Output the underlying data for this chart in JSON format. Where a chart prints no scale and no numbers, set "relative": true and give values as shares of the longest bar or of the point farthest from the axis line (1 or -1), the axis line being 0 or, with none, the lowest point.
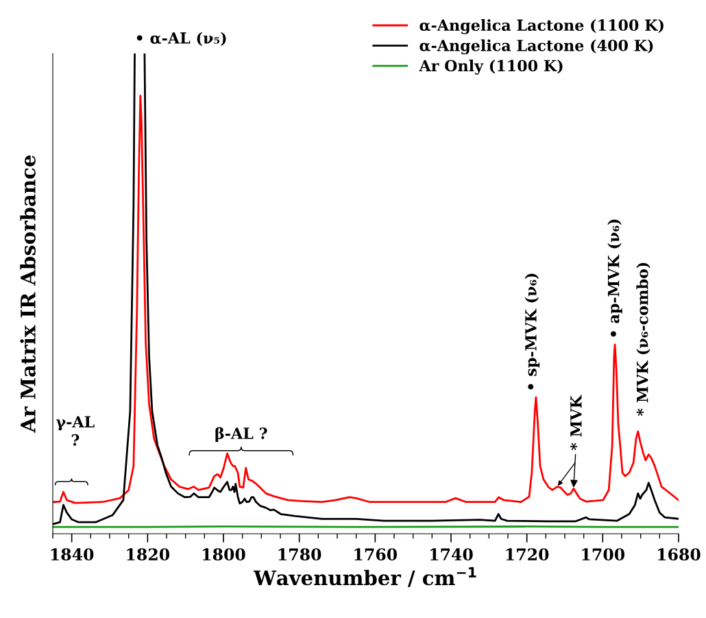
{
  "chart_data": {
    "type": "line",
    "relative": true,
    "xlabel": "Wavenumber / cm$^{−1}$",
    "ylabel": "Ar Matrix IR Absorbance",
    "xlim": [
      1845,
      1680
    ],
    "xticks": [
      {
        "value": 1845,
        "label": null
      },
      1840,
      {
        "value": 1835,
        "label": null
      },
      {
        "value": 1830,
        "label": null
      },
      {
        "value": 1825,
        "label": null
      },
      1820,
      {
        "value": 1815,
        "label": null
      },
      {
        "value": 1810,
        "label": null
      },
      {
        "value": 1805,
        "label": null
      },
      1800,
      {
        "value": 1795,
        "label": null
      },
      {
        "value": 1790,
        "label": null
      },
      {
        "value": 1785,
        "label": null
      },
      1780,
      {
        "value": 1775,
        "label": null
      },
      {
        "value": 1770,
        "label": null
      },
      {
        "value": 1765,
        "label": null
      },
      1760,
      {
        "value": 1755,
        "label": null
      },
      {
        "value": 1750,
        "label": null
      },
      {
        "value": 1745,
        "label": null
      },
      1740,
      {
        "value": 1735,
        "label": null
      },
      {
        "value": 1730,
        "label": null
      },
      {
        "value": 1725,
        "label": null
      },
      1720,
      {
        "value": 1715,
        "label": null
      },
      {
        "value": 1710,
        "label": null
      },
      {
        "value": 1705,
        "label": null
      },
      1700,
      {
        "value": 1695,
        "label": null
      },
      {
        "value": 1690,
        "label": null
      },
      {
        "value": 1685,
        "label": null
      },
      1680
    ],
    "legend": "top right",
    "grid": false,
    "marker": "none",
    "line_style": "solid",
    "series": [
      {
        "name": "α-Angelica Lactone (1100 K)",
        "color": "#ff0000",
        "x": [
          1845.0,
          1843.1,
          1842.2,
          1841.3,
          1839.1,
          1831.9,
          1827.3,
          1825.0,
          1823.7,
          1822.8,
          1822.3,
          1821.9,
          1821.6,
          1821.0,
          1820.5,
          1819.6,
          1818.3,
          1817.0,
          1815.6,
          1813.8,
          1811.6,
          1809.3,
          1807.8,
          1806.6,
          1803.8,
          1802.4,
          1801.5,
          1800.8,
          1799.9,
          1799.0,
          1798.1,
          1797.5,
          1797.0,
          1796.2,
          1795.7,
          1794.8,
          1794.1,
          1793.4,
          1792.4,
          1791.4,
          1790.3,
          1788.8,
          1786.7,
          1783.0,
          1779.4,
          1774.0,
          1770.4,
          1766.8,
          1765.0,
          1761.4,
          1750.5,
          1741.5,
          1738.8,
          1736.0,
          1732.4,
          1728.4,
          1727.4,
          1726.1,
          1721.6,
          1719.4,
          1718.7,
          1717.9,
          1717.6,
          1717.1,
          1716.5,
          1715.6,
          1714.3,
          1713.3,
          1712.0,
          1711.1,
          1710.2,
          1709.3,
          1708.4,
          1707.7,
          1706.9,
          1706.0,
          1704.4,
          1699.9,
          1698.4,
          1697.5,
          1697.0,
          1696.8,
          1696.4,
          1695.9,
          1695.4,
          1694.8,
          1694.1,
          1693.0,
          1691.9,
          1691.2,
          1690.7,
          1690.1,
          1689.4,
          1688.7,
          1687.9,
          1687.2,
          1686.3,
          1685.4,
          1684.5,
          1682.7,
          1680.0
        ],
        "values": [
          0.066,
          0.067,
          0.087,
          0.07,
          0.064,
          0.066,
          0.074,
          0.091,
          0.141,
          0.469,
          0.755,
          0.912,
          0.854,
          0.612,
          0.398,
          0.27,
          0.198,
          0.17,
          0.141,
          0.113,
          0.098,
          0.093,
          0.098,
          0.091,
          0.096,
          0.12,
          0.124,
          0.117,
          0.138,
          0.167,
          0.148,
          0.141,
          0.141,
          0.127,
          0.098,
          0.096,
          0.137,
          0.113,
          0.11,
          0.104,
          0.096,
          0.084,
          0.078,
          0.07,
          0.068,
          0.066,
          0.07,
          0.076,
          0.074,
          0.066,
          0.066,
          0.066,
          0.074,
          0.066,
          0.066,
          0.066,
          0.076,
          0.07,
          0.066,
          0.077,
          0.127,
          0.255,
          0.284,
          0.227,
          0.141,
          0.113,
          0.097,
          0.091,
          0.098,
          0.096,
          0.088,
          0.081,
          0.084,
          0.094,
          0.084,
          0.073,
          0.067,
          0.07,
          0.091,
          0.184,
          0.369,
          0.394,
          0.341,
          0.227,
          0.184,
          0.127,
          0.12,
          0.127,
          0.148,
          0.198,
          0.213,
          0.191,
          0.17,
          0.153,
          0.165,
          0.158,
          0.141,
          0.12,
          0.098,
          0.087,
          0.07
        ]
      },
      {
        "name": "α-Angelica Lactone (400 K)",
        "color": "#000000",
        "x": [
          1845.0,
          1843.1,
          1842.2,
          1841.3,
          1840.0,
          1838.2,
          1833.7,
          1829.2,
          1826.4,
          1824.6,
          1823.7,
          1823.4,
          1822.2,
          1820.8,
          1820.3,
          1819.6,
          1818.8,
          1817.4,
          1816.3,
          1815.2,
          1813.8,
          1812.0,
          1810.2,
          1808.7,
          1807.8,
          1806.6,
          1803.8,
          1802.9,
          1802.4,
          1801.5,
          1800.8,
          1799.9,
          1799.0,
          1798.4,
          1797.9,
          1797.5,
          1797.1,
          1796.8,
          1796.2,
          1795.7,
          1795.0,
          1794.4,
          1793.9,
          1793.2,
          1792.6,
          1792.1,
          1791.4,
          1790.3,
          1788.8,
          1787.6,
          1786.7,
          1784.9,
          1781.2,
          1774.0,
          1765.0,
          1757.7,
          1745.1,
          1732.4,
          1728.4,
          1727.5,
          1726.8,
          1725.2,
          1714.3,
          1707.1,
          1704.4,
          1703.5,
          1696.2,
          1693.0,
          1691.5,
          1690.7,
          1690.1,
          1689.6,
          1688.5,
          1687.9,
          1687.2,
          1686.3,
          1685.0,
          1683.6,
          1680.0
        ],
        "values": [
          0.02,
          0.024,
          0.06,
          0.044,
          0.03,
          0.024,
          0.024,
          0.039,
          0.07,
          0.255,
          0.683,
          1.0,
          null,
          1.0,
          0.612,
          0.369,
          0.255,
          0.184,
          0.158,
          0.127,
          0.098,
          0.084,
          0.076,
          0.077,
          0.084,
          0.076,
          0.076,
          0.088,
          0.096,
          0.09,
          0.087,
          0.098,
          0.108,
          0.091,
          0.091,
          0.098,
          0.087,
          0.104,
          0.077,
          0.063,
          0.066,
          0.073,
          0.066,
          0.067,
          0.076,
          0.076,
          0.066,
          0.058,
          0.054,
          0.049,
          0.05,
          0.041,
          0.037,
          0.031,
          0.031,
          0.027,
          0.027,
          0.029,
          0.027,
          0.041,
          0.031,
          0.027,
          0.026,
          0.026,
          0.034,
          0.03,
          0.027,
          0.041,
          0.06,
          0.084,
          0.073,
          0.081,
          0.091,
          0.106,
          0.091,
          0.07,
          0.044,
          0.034,
          0.031
        ]
      },
      {
        "name": "Ar Only (1100 K)",
        "color": "#1a9a1a",
        "x": [
          1845.0,
          1820.0,
          1800.0,
          1760.0,
          1720.0,
          1700.0,
          1680.0
        ],
        "values": [
          0.014,
          0.014,
          0.015,
          0.014,
          0.015,
          0.014,
          0.014
        ]
      }
    ],
    "annotations": [
      "• α-AL (ν₅)",
      "γ-AL\n?",
      "β-AL ?",
      {
        "text": "• sp-MVK (ν₆)",
        "x": 1717.6,
        "y": 0.284
      },
      {
        "text": "* MVK",
        "x": 1707.7,
        "y": 0.094
      },
      {
        "text": "• ap-MVK (ν₆)",
        "x": 1696.8,
        "y": 0.394
      },
      {
        "text": "* MVK (ν₆-combo)",
        "x": 1690.7,
        "y": 0.213
      }
    ]
  }
}
